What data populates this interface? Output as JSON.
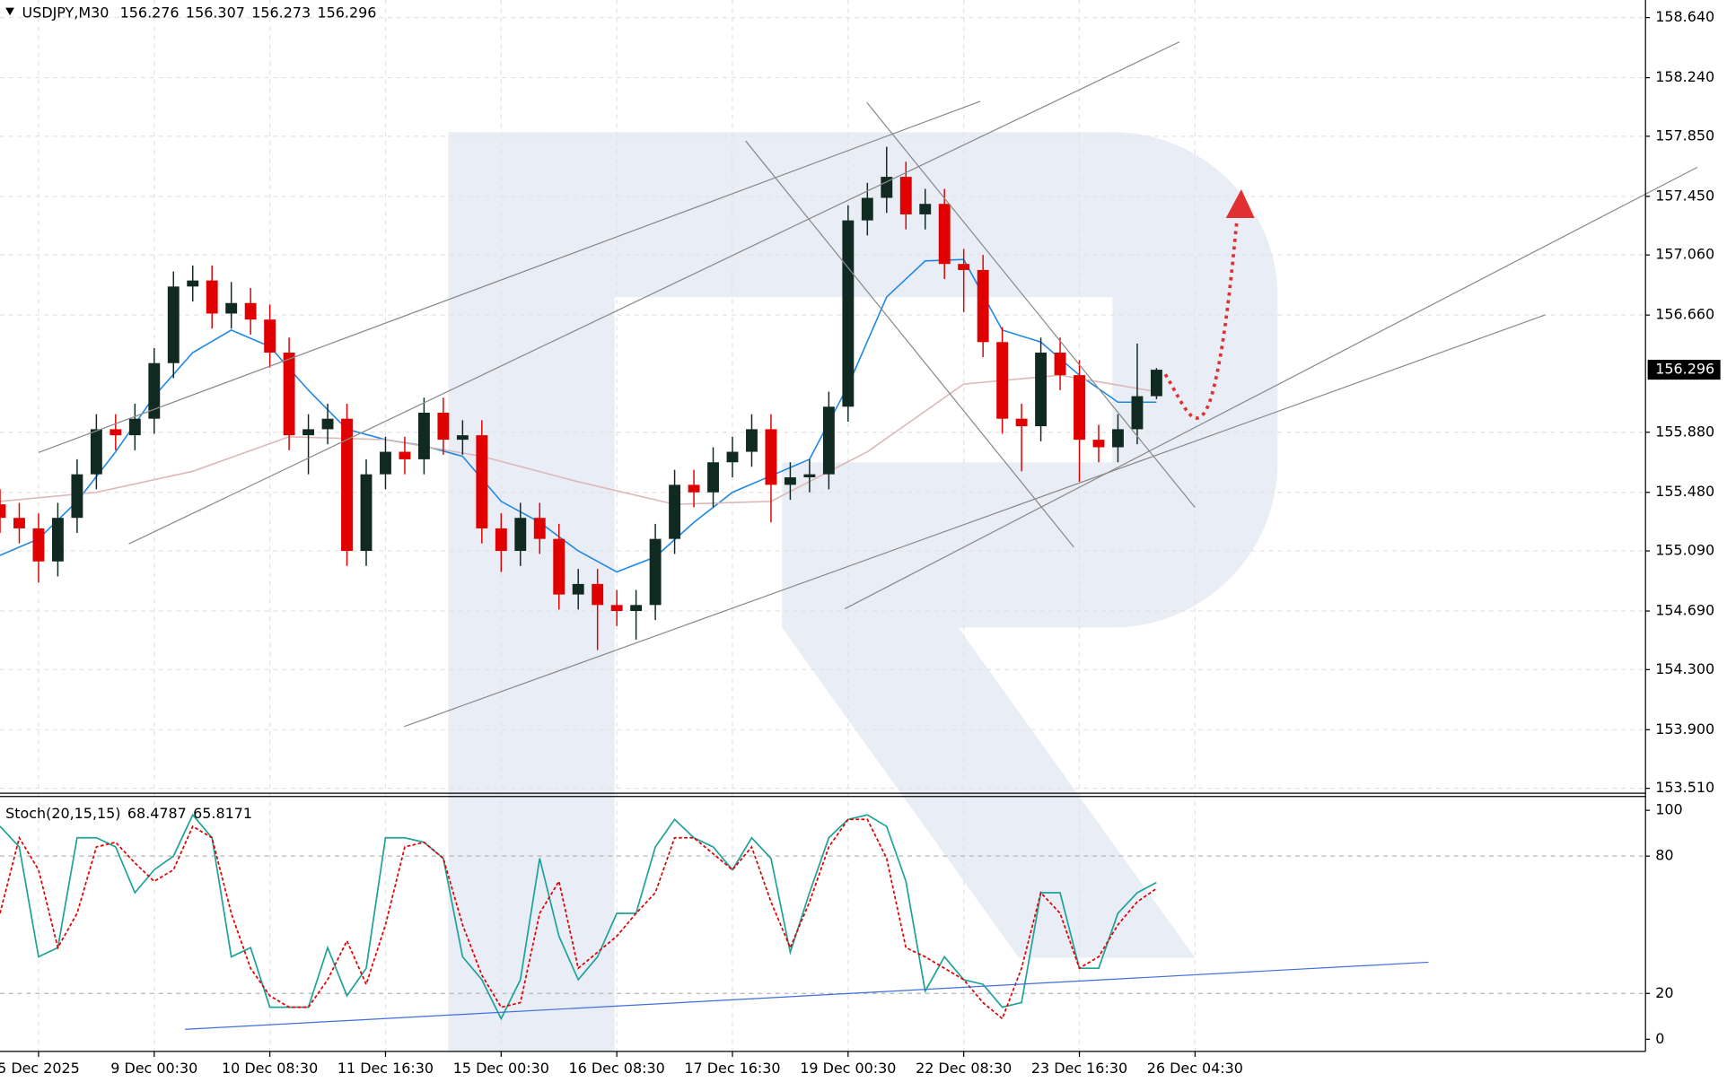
{
  "chart_data": [
    {
      "type": "candlestick",
      "title": "USDJPY,M30",
      "info": [
        "156.276",
        "156.307",
        "156.273",
        "156.296"
      ],
      "xlim": [
        0,
        85.37
      ],
      "xticks": [
        {
          "value": 2,
          "label": "5 Dec 2025"
        },
        {
          "value": 8,
          "label": "9 Dec 00:30"
        },
        {
          "value": 14,
          "label": "10 Dec 08:30"
        },
        {
          "value": 20,
          "label": "11 Dec 16:30"
        },
        {
          "value": 26,
          "label": "15 Dec 00:30"
        },
        {
          "value": 32,
          "label": "16 Dec 08:30"
        },
        {
          "value": 38,
          "label": "17 Dec 16:30"
        },
        {
          "value": 44,
          "label": "19 Dec 00:30"
        },
        {
          "value": 50,
          "label": "22 Dec 08:30"
        },
        {
          "value": 56,
          "label": "23 Dec 16:30"
        },
        {
          "value": 62,
          "label": "26 Dec 04:30"
        }
      ],
      "ylim": [
        153.481,
        158.757
      ],
      "yticks": [
        {
          "value": 153.51,
          "label": "153.510"
        },
        {
          "value": 153.9,
          "label": "153.900"
        },
        {
          "value": 154.3,
          "label": "154.300"
        },
        {
          "value": 154.69,
          "label": "154.690"
        },
        {
          "value": 155.09,
          "label": "155.090"
        },
        {
          "value": 155.48,
          "label": "155.480"
        },
        {
          "value": 155.88,
          "label": "155.880"
        },
        {
          "value": 156.66,
          "label": "156.660"
        },
        {
          "value": 157.06,
          "label": "157.060"
        },
        {
          "value": 157.45,
          "label": "157.450"
        },
        {
          "value": 157.85,
          "label": "157.850"
        },
        {
          "value": 158.24,
          "label": "158.240"
        },
        {
          "value": 158.64,
          "label": "158.640"
        }
      ],
      "last_price": {
        "value": 156.296,
        "label": "156.296"
      },
      "grid": true,
      "up_color": "#102a22",
      "down_color": "#e00000",
      "open": [
        155.4,
        155.31,
        155.24,
        155.02,
        155.31,
        155.6,
        155.9,
        155.86,
        155.97,
        156.34,
        156.85,
        156.89,
        156.67,
        156.74,
        156.63,
        156.41,
        155.86,
        155.9,
        155.97,
        155.09,
        155.6,
        155.75,
        155.7,
        156.01,
        155.83,
        155.86,
        155.24,
        155.09,
        155.31,
        155.17,
        154.8,
        154.87,
        154.73,
        154.69,
        154.73,
        155.17,
        155.53,
        155.48,
        155.68,
        155.75,
        155.9,
        155.53,
        155.58,
        155.6,
        156.05,
        157.29,
        157.44,
        157.58,
        157.33,
        157.4,
        157.0,
        156.96,
        156.48,
        155.97,
        155.92,
        156.41,
        156.26,
        155.83,
        155.78,
        155.9,
        156.12
      ],
      "high": [
        155.5,
        155.41,
        155.34,
        155.41,
        155.7,
        156.0,
        156.0,
        156.07,
        156.44,
        156.95,
        156.99,
        156.99,
        156.88,
        156.84,
        156.73,
        156.51,
        156.0,
        156.07,
        156.07,
        155.7,
        155.85,
        155.85,
        156.11,
        156.11,
        155.96,
        155.96,
        155.34,
        155.41,
        155.41,
        155.27,
        154.97,
        154.97,
        154.83,
        154.83,
        155.27,
        155.63,
        155.63,
        155.78,
        155.85,
        156.0,
        156.0,
        155.68,
        155.7,
        156.15,
        157.39,
        157.54,
        157.78,
        157.68,
        157.5,
        157.5,
        157.1,
        157.06,
        156.58,
        156.07,
        156.51,
        156.51,
        156.36,
        155.93,
        156.0,
        156.47,
        156.307
      ],
      "low": [
        155.21,
        155.14,
        154.88,
        154.92,
        155.21,
        155.5,
        155.76,
        155.76,
        155.87,
        156.24,
        156.75,
        156.57,
        156.57,
        156.53,
        156.31,
        155.76,
        155.6,
        155.8,
        154.99,
        154.99,
        155.5,
        155.6,
        155.6,
        155.73,
        155.73,
        155.14,
        154.95,
        154.99,
        155.07,
        154.7,
        154.7,
        154.43,
        154.59,
        154.5,
        154.63,
        155.07,
        155.38,
        155.38,
        155.58,
        155.65,
        155.28,
        155.43,
        155.48,
        155.5,
        155.95,
        157.19,
        157.34,
        157.23,
        157.23,
        156.9,
        156.68,
        156.38,
        155.87,
        155.62,
        155.82,
        156.16,
        155.55,
        155.68,
        155.68,
        155.8,
        156.1
      ],
      "close": [
        155.31,
        155.24,
        155.02,
        155.31,
        155.6,
        155.9,
        155.86,
        155.97,
        156.34,
        156.85,
        156.89,
        156.67,
        156.74,
        156.63,
        156.41,
        155.86,
        155.9,
        155.97,
        155.09,
        155.6,
        155.75,
        155.7,
        156.01,
        155.83,
        155.86,
        155.24,
        155.09,
        155.31,
        155.17,
        154.8,
        154.87,
        154.73,
        154.69,
        154.73,
        155.17,
        155.53,
        155.48,
        155.68,
        155.75,
        155.9,
        155.53,
        155.58,
        155.6,
        156.05,
        157.29,
        157.44,
        157.58,
        157.33,
        157.4,
        157.0,
        156.96,
        156.48,
        155.97,
        155.92,
        156.41,
        156.26,
        155.83,
        155.78,
        155.9,
        156.12,
        156.296
      ],
      "moving_averages": [
        {
          "color": "#1e88e5",
          "x": [
            0,
            2,
            4,
            6,
            8,
            10,
            12,
            14,
            16,
            18,
            20,
            22,
            24,
            26,
            28,
            30,
            32,
            34,
            36,
            38,
            40,
            42,
            44,
            46,
            48,
            50,
            52,
            54,
            56,
            58,
            60
          ],
          "values": [
            155.06,
            155.17,
            155.42,
            155.75,
            156.12,
            156.41,
            156.56,
            156.45,
            156.16,
            155.9,
            155.83,
            155.79,
            155.72,
            155.42,
            155.28,
            155.09,
            154.95,
            155.05,
            155.28,
            155.48,
            155.59,
            155.7,
            156.19,
            156.78,
            157.02,
            157.03,
            156.56,
            156.48,
            156.26,
            156.08,
            156.08
          ]
        },
        {
          "color": "#dcb8b8",
          "x": [
            0,
            5,
            10,
            15,
            20,
            25,
            30,
            35,
            40,
            45,
            50,
            55,
            60
          ],
          "values": [
            155.42,
            155.48,
            155.62,
            155.85,
            155.83,
            155.72,
            155.55,
            155.4,
            155.42,
            155.75,
            156.2,
            156.26,
            156.15
          ]
        }
      ]
    },
    {
      "type": "line",
      "title": "Stoch(20,15,15)",
      "xlim": [
        0,
        85.37
      ],
      "ylim": [
        -5.3,
        105.3
      ],
      "yticks": [
        0,
        20,
        80,
        100
      ],
      "levels": [
        20,
        80
      ],
      "series": [
        {
          "color": "#1fa398",
          "dashed": false,
          "values": [
            93,
            84,
            36,
            40,
            88,
            88,
            84,
            64,
            74,
            80,
            98,
            88,
            36,
            40,
            14,
            14,
            14,
            40,
            19,
            31,
            88,
            88,
            86,
            79,
            36,
            26,
            9,
            26,
            79,
            45,
            26,
            36,
            55,
            55,
            84,
            96,
            88,
            84,
            74,
            88,
            79,
            38,
            64,
            88,
            96,
            98,
            93,
            69,
            21,
            36,
            26,
            24,
            14,
            16,
            64,
            64,
            31,
            31,
            55,
            64,
            68.4787
          ]
        },
        {
          "color": "#e00000",
          "dashed": true,
          "values": [
            55,
            88,
            74,
            40,
            55,
            84,
            86,
            77,
            69,
            74,
            93,
            88,
            55,
            31,
            19,
            14,
            14,
            26,
            43,
            24,
            50,
            84,
            86,
            79,
            50,
            28,
            14,
            16,
            55,
            69,
            31,
            38,
            45,
            55,
            64,
            88,
            88,
            81,
            74,
            84,
            60,
            40,
            60,
            84,
            96,
            96,
            79,
            40,
            36,
            31,
            26,
            16,
            9,
            31,
            64,
            55,
            31,
            36,
            50,
            60,
            65.8171
          ]
        }
      ]
    }
  ]
}
